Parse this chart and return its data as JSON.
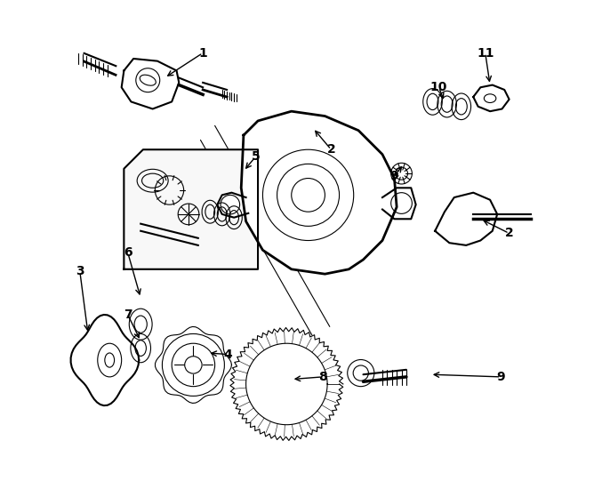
{
  "title": "",
  "background_color": "#ffffff",
  "line_color": "#000000",
  "label_color": "#000000",
  "fig_width": 6.77,
  "fig_height": 5.41,
  "dpi": 100
}
